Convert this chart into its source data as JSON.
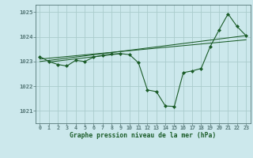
{
  "title": "Graphe pression niveau de la mer (hPa)",
  "bg_color": "#cce8ec",
  "grid_color": "#aacccc",
  "line_color": "#1a5c28",
  "marker_color": "#1a5c28",
  "xlim": [
    -0.5,
    23.5
  ],
  "ylim": [
    1020.5,
    1025.3
  ],
  "yticks": [
    1021,
    1022,
    1023,
    1024,
    1025
  ],
  "xticks": [
    0,
    1,
    2,
    3,
    4,
    5,
    6,
    7,
    8,
    9,
    10,
    11,
    12,
    13,
    14,
    15,
    16,
    17,
    18,
    19,
    20,
    21,
    22,
    23
  ],
  "main_series": [
    [
      0,
      1023.2
    ],
    [
      1,
      1023.0
    ],
    [
      2,
      1022.88
    ],
    [
      3,
      1022.82
    ],
    [
      4,
      1023.05
    ],
    [
      5,
      1023.0
    ],
    [
      6,
      1023.18
    ],
    [
      7,
      1023.25
    ],
    [
      8,
      1023.3
    ],
    [
      9,
      1023.32
    ],
    [
      10,
      1023.28
    ],
    [
      11,
      1022.95
    ],
    [
      12,
      1021.85
    ],
    [
      13,
      1021.78
    ],
    [
      14,
      1021.2
    ],
    [
      15,
      1021.18
    ],
    [
      16,
      1022.55
    ],
    [
      17,
      1022.62
    ],
    [
      18,
      1022.72
    ],
    [
      19,
      1023.6
    ],
    [
      20,
      1024.28
    ],
    [
      21,
      1024.93
    ],
    [
      22,
      1024.42
    ],
    [
      23,
      1024.05
    ]
  ],
  "trend_line1": [
    [
      0,
      1023.0
    ],
    [
      23,
      1024.05
    ]
  ],
  "trend_line2": [
    [
      0,
      1023.1
    ],
    [
      23,
      1023.88
    ]
  ],
  "trend_line3": [
    [
      1,
      1022.98
    ],
    [
      9,
      1023.32
    ]
  ]
}
